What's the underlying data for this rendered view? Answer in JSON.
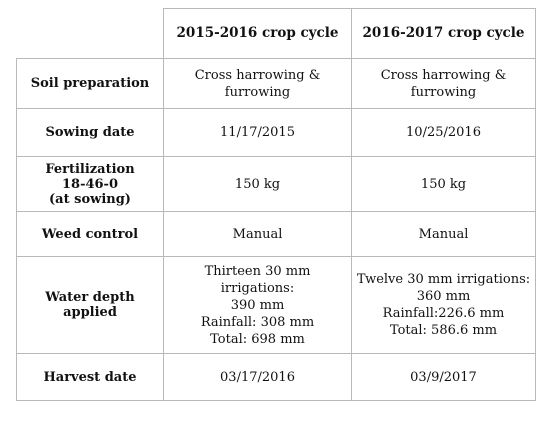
{
  "table": {
    "headers": [
      "",
      "2015-2016 crop cycle",
      "2016-2017 crop cycle"
    ],
    "rows": [
      {
        "label": [
          "Soil preparation"
        ],
        "c1": [
          "Cross harrowing & furrowing"
        ],
        "c2": [
          "Cross harrowing &",
          "furrowing"
        ]
      },
      {
        "label": [
          "Sowing date"
        ],
        "c1": [
          "11/17/2015"
        ],
        "c2": [
          "10/25/2016"
        ]
      },
      {
        "label": [
          "Fertilization",
          "18-46-0",
          "(at sowing)"
        ],
        "c1": [
          "150 kg"
        ],
        "c2": [
          "150 kg"
        ]
      },
      {
        "label": [
          "Weed control"
        ],
        "c1": [
          "Manual"
        ],
        "c2": [
          "Manual"
        ]
      },
      {
        "label": [
          "Water depth",
          "applied"
        ],
        "c1": [
          "Thirteen 30 mm irrigations:",
          "390 mm",
          "Rainfall: 308 mm",
          "Total: 698 mm"
        ],
        "c2": [
          "Twelve 30 mm irrigations:",
          "360 mm",
          "Rainfall:226.6 mm",
          "Total: 586.6 mm"
        ]
      },
      {
        "label": [
          "Harvest date"
        ],
        "c1": [
          "03/17/2016"
        ],
        "c2": [
          "03/9/2017"
        ]
      }
    ]
  }
}
